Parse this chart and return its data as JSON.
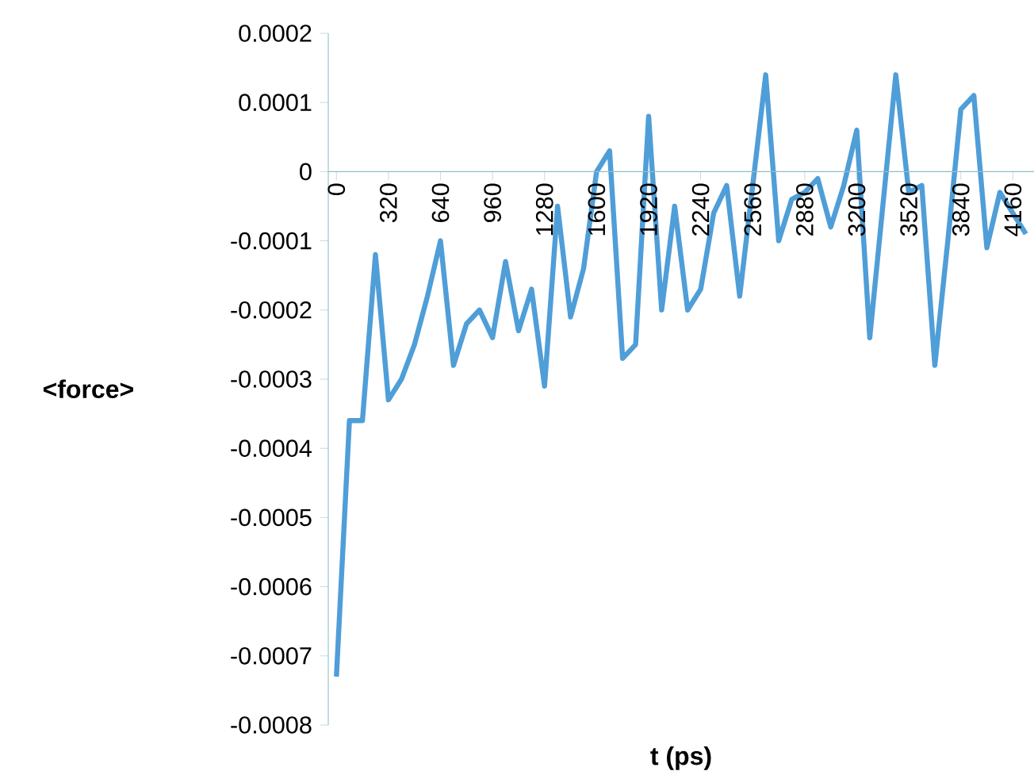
{
  "chart_data": {
    "type": "line",
    "xlabel": "t (ps)",
    "ylabel": "<force>",
    "color": "#4f9ed8",
    "x": [
      0,
      80,
      160,
      240,
      320,
      400,
      480,
      560,
      640,
      720,
      800,
      880,
      960,
      1040,
      1120,
      1200,
      1280,
      1360,
      1440,
      1520,
      1600,
      1680,
      1760,
      1840,
      1920,
      2000,
      2080,
      2160,
      2240,
      2320,
      2400,
      2480,
      2560,
      2640,
      2720,
      2800,
      2880,
      2960,
      3040,
      3120,
      3200,
      3280,
      3360,
      3440,
      3520,
      3600,
      3680,
      3760,
      3840,
      3920,
      4000,
      4080,
      4160,
      4240
    ],
    "values": [
      -0.00073,
      -0.00036,
      -0.00036,
      -0.00012,
      -0.00033,
      -0.0003,
      -0.00025,
      -0.00018,
      -0.0001,
      -0.00028,
      -0.00022,
      -0.0002,
      -0.00024,
      -0.00013,
      -0.00023,
      -0.00017,
      -0.00031,
      -5e-05,
      -0.00021,
      -0.00014,
      0.0,
      3e-05,
      -0.00027,
      -0.00025,
      8e-05,
      -0.0002,
      -5e-05,
      -0.0002,
      -0.00017,
      -6e-05,
      -2e-05,
      -0.00018,
      -2e-05,
      0.00014,
      -0.0001,
      -4e-05,
      -3e-05,
      -1e-05,
      -8e-05,
      -2e-05,
      6e-05,
      -0.00024,
      -5e-05,
      0.00014,
      -3e-05,
      -2e-05,
      -0.00028,
      -0.0001,
      9e-05,
      0.00011,
      -0.00011,
      -3e-05,
      -6e-05,
      -9e-05
    ],
    "xlim": [
      -50,
      4290
    ],
    "ylim": [
      -0.0008,
      0.0002
    ],
    "xticks": [
      0,
      320,
      640,
      960,
      1280,
      1600,
      1920,
      2240,
      2560,
      2880,
      3200,
      3520,
      3840,
      4160
    ],
    "yticks": [
      -0.0008,
      -0.0007,
      -0.0006,
      -0.0005,
      -0.0004,
      -0.0003,
      -0.0002,
      -0.0001,
      0,
      0.0001,
      0.0002
    ]
  }
}
